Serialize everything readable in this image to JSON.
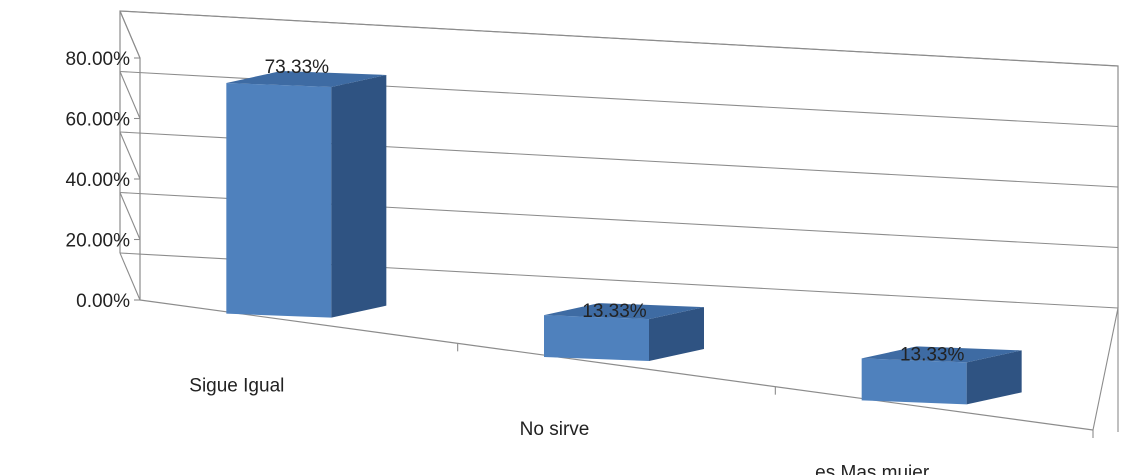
{
  "chart_data": {
    "type": "bar",
    "style": "3d-column",
    "categories": [
      "Sigue Igual",
      "No sirve",
      "es Mas mujer"
    ],
    "series": [
      {
        "values": [
          73.33,
          13.33,
          13.33
        ]
      }
    ],
    "data_labels": [
      "73.33%",
      "13.33%",
      "13.33%"
    ],
    "ylim": [
      0,
      80
    ],
    "yticks": [
      0,
      20,
      40,
      60,
      80
    ],
    "ytick_labels": [
      "0.00%",
      "20.00%",
      "40.00%",
      "60.00%",
      "80.00%"
    ],
    "xlabel": "",
    "ylabel": "",
    "grid": true,
    "legend": "none",
    "colors": {
      "bar_front": "#4F81BD",
      "bar_top": "#3E6BA3",
      "bar_side": "#2F5382",
      "grid": "#8C8C8C"
    }
  }
}
